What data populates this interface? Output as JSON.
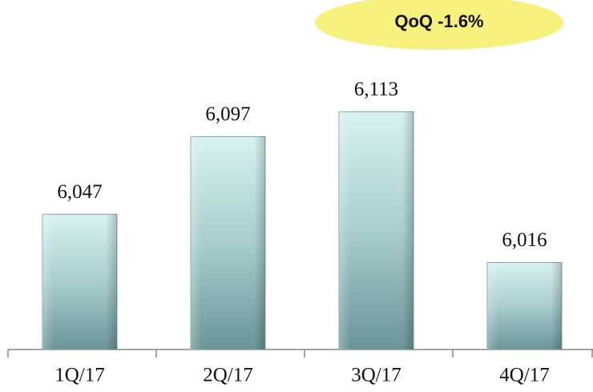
{
  "chart_data": {
    "type": "bar",
    "categories": [
      "1Q/17",
      "2Q/17",
      "3Q/17",
      "4Q/17"
    ],
    "values": [
      6047,
      6097,
      6113,
      6016
    ],
    "value_labels": [
      "6,047",
      "6,097",
      "6,113",
      "6,016"
    ],
    "ylim": [
      5960,
      6140
    ],
    "annotation": "QoQ -1.6%"
  }
}
